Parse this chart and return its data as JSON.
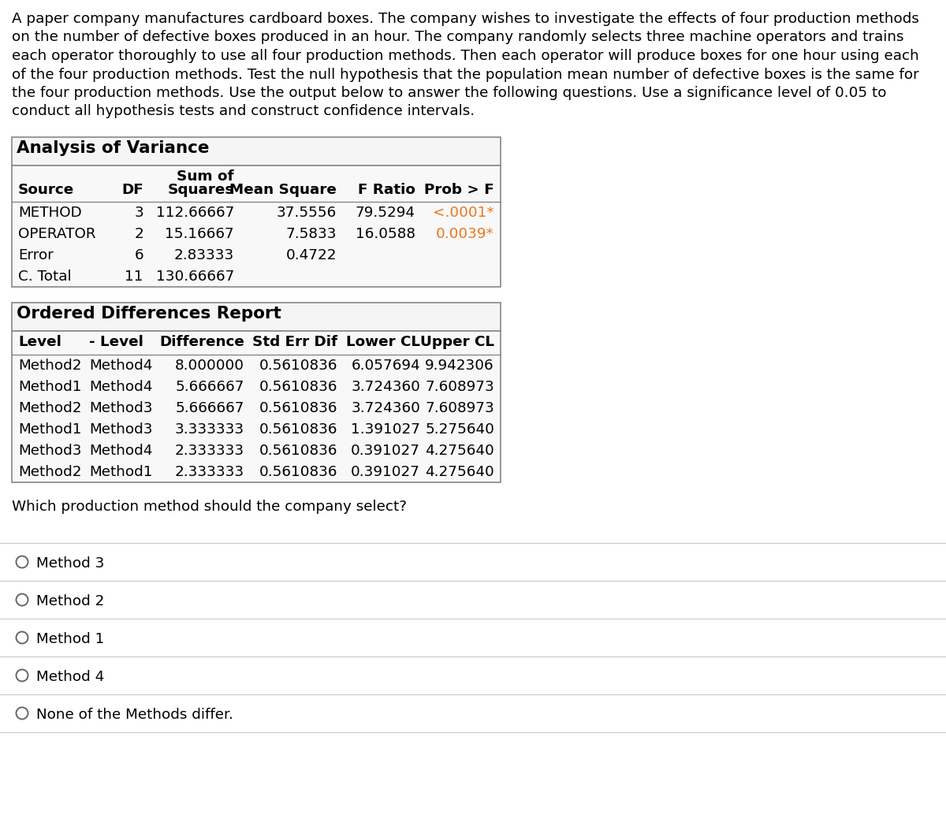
{
  "intro_lines": [
    "A paper company manufactures cardboard boxes. The company wishes to investigate the effects of four production methods",
    "on the number of defective boxes produced in an hour. The company randomly selects three machine operators and trains",
    "each operator thoroughly to use all four production methods. Then each operator will produce boxes for one hour using each",
    "of the four production methods. Test the null hypothesis that the population mean number of defective boxes is the same for",
    "the four production methods. Use the output below to answer the following questions. Use a significance level of 0.05 to",
    "conduct all hypothesis tests and construct confidence intervals."
  ],
  "anova_title": "Analysis of Variance",
  "anova_col_widths": [
    120,
    55,
    115,
    130,
    100,
    100
  ],
  "anova_headers_line1": [
    "",
    "",
    "Sum of",
    "",
    "",
    ""
  ],
  "anova_headers_line2": [
    "Source",
    "DF",
    "Squares",
    "Mean Square",
    "F Ratio",
    "Prob > F"
  ],
  "anova_rows": [
    [
      "METHOD",
      "3",
      "112.66667",
      "37.5556",
      "79.5294",
      "<.0001*"
    ],
    [
      "OPERATOR",
      "2",
      "15.16667",
      "7.5833",
      "16.0588",
      "0.0039*"
    ],
    [
      "Error",
      "6",
      "2.83333",
      "0.4722",
      "",
      ""
    ],
    [
      "C. Total",
      "11",
      "130.66667",
      "",
      "",
      ""
    ]
  ],
  "anova_col_aligns": [
    "left",
    "right",
    "right",
    "right",
    "right",
    "right"
  ],
  "anova_prob_color": "#E87722",
  "odr_title": "Ordered Differences Report",
  "odr_col_widths": [
    90,
    95,
    118,
    118,
    105,
    94
  ],
  "odr_headers": [
    "Level",
    "- Level",
    "Difference",
    "Std Err Dif",
    "Lower CL",
    "Upper CL"
  ],
  "odr_col_aligns": [
    "left",
    "left",
    "right",
    "right",
    "right",
    "right"
  ],
  "odr_rows": [
    [
      "Method2",
      "Method4",
      "8.000000",
      "0.5610836",
      "6.057694",
      "9.942306"
    ],
    [
      "Method1",
      "Method4",
      "5.666667",
      "0.5610836",
      "3.724360",
      "7.608973"
    ],
    [
      "Method2",
      "Method3",
      "5.666667",
      "0.5610836",
      "3.724360",
      "7.608973"
    ],
    [
      "Method1",
      "Method3",
      "3.333333",
      "0.5610836",
      "1.391027",
      "5.275640"
    ],
    [
      "Method3",
      "Method4",
      "2.333333",
      "0.5610836",
      "0.391027",
      "4.275640"
    ],
    [
      "Method2",
      "Method1",
      "2.333333",
      "0.5610836",
      "0.391027",
      "4.275640"
    ]
  ],
  "question_text": "Which production method should the company select?",
  "choices": [
    "Method 3",
    "Method 2",
    "Method 1",
    "Method 4",
    "None of the Methods differ."
  ],
  "bg_color": "#ffffff",
  "table_outer_border": "#888888",
  "table_fill": "#f5f5f5",
  "font_size_intro": 13.2,
  "font_size_table_data": 13.2,
  "font_size_table_hdr": 13.2,
  "font_size_title": 15.5,
  "font_size_question": 13.2,
  "font_size_choice": 13.2
}
